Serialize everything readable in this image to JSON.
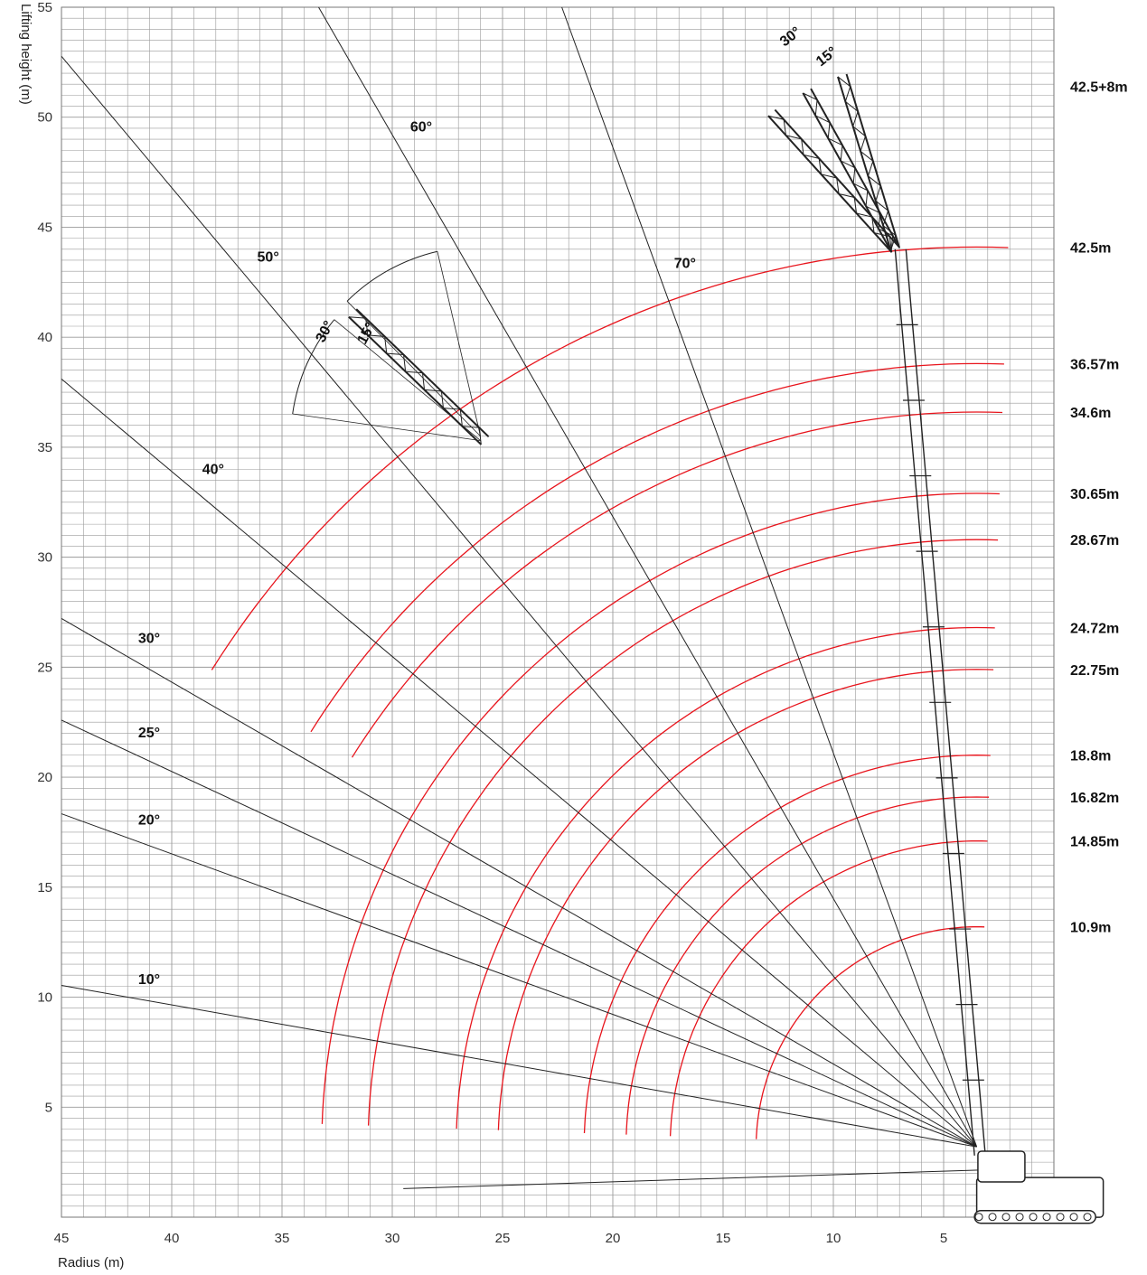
{
  "chart_data": {
    "type": "range-diagram",
    "title": "",
    "xlabel": "Radius (m)",
    "ylabel": "Lifting height (m)",
    "xlim": [
      45,
      0
    ],
    "ylim": [
      0,
      55
    ],
    "x_reversed": true,
    "x_ticks": [
      45,
      40,
      35,
      30,
      25,
      20,
      15,
      10,
      5
    ],
    "y_ticks": [
      55,
      50,
      45,
      40,
      35,
      30,
      25,
      20,
      15,
      10,
      5
    ],
    "grid": true,
    "pivot": [
      3.5,
      3.2
    ],
    "angle_lines": [
      {
        "angle": 10,
        "label": "10°"
      },
      {
        "angle": 20,
        "label": "20°"
      },
      {
        "angle": 25,
        "label": "25°"
      },
      {
        "angle": 30,
        "label": "30°"
      },
      {
        "angle": 40,
        "label": "40°"
      },
      {
        "angle": 50,
        "label": "50°"
      },
      {
        "angle": 60,
        "label": "60°"
      },
      {
        "angle": 70,
        "label": "70°"
      }
    ],
    "boom_lengths": [
      {
        "label": "42.5+8m",
        "tip_height": 51.4
      },
      {
        "label": "42.5m",
        "tip_height": 44.1
      },
      {
        "label": "36.57m",
        "tip_height": 38.8
      },
      {
        "label": "34.6m",
        "tip_height": 36.6
      },
      {
        "label": "30.65m",
        "tip_height": 32.9
      },
      {
        "label": "28.67m",
        "tip_height": 30.8
      },
      {
        "label": "24.72m",
        "tip_height": 26.8
      },
      {
        "label": "22.75m",
        "tip_height": 24.9
      },
      {
        "label": "18.8m",
        "tip_height": 21.0
      },
      {
        "label": "16.82m",
        "tip_height": 19.1
      },
      {
        "label": "14.85m",
        "tip_height": 17.1
      },
      {
        "label": "10.9m",
        "tip_height": 13.2
      }
    ],
    "jib_offsets": [
      "30°",
      "15°"
    ],
    "colors": {
      "curves": "#e8141c",
      "grid": "#9a9a9a",
      "lines": "#222222"
    }
  }
}
